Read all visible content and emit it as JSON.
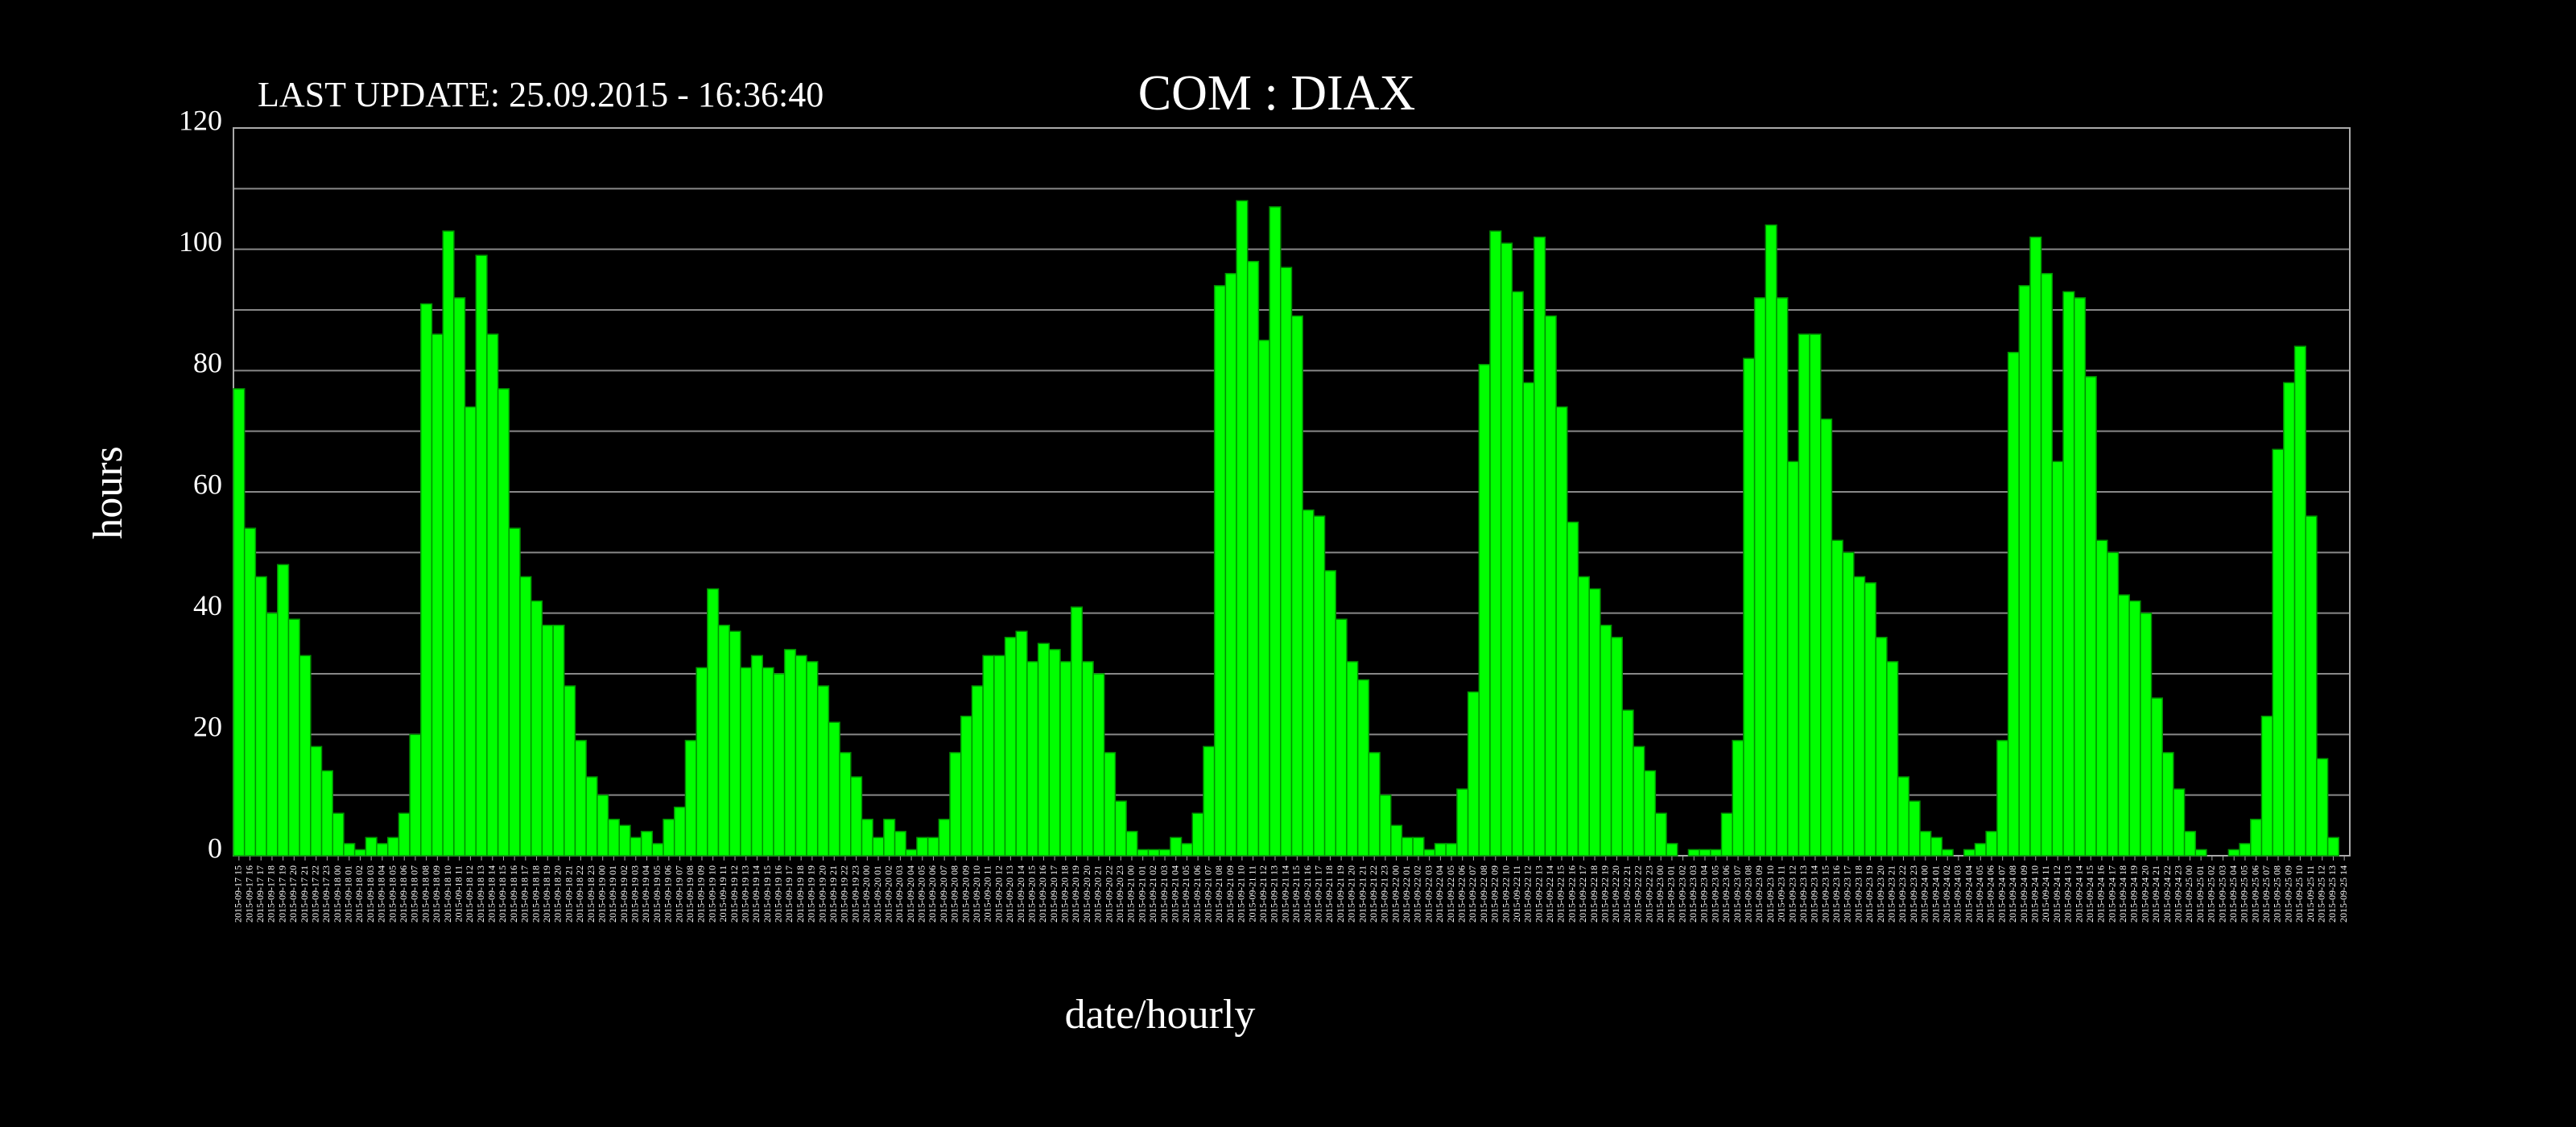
{
  "chart_data": {
    "type": "bar",
    "title": "COM : DIAX",
    "subtitle": "LAST UPDATE: 25.09.2015 - 16:36:40",
    "y_label": "hours",
    "x_label": "date/hourly",
    "color": "#00ff00",
    "ylim": [
      0,
      120
    ],
    "yticks": [
      0,
      20,
      40,
      60,
      80,
      100,
      120
    ],
    "minor_yticks": [
      10,
      30,
      50,
      70,
      90,
      110
    ],
    "grid": true,
    "categories": [
      "2015-09-17 15",
      "2015-09-17 16",
      "2015-09-17 17",
      "2015-09-17 18",
      "2015-09-17 19",
      "2015-09-17 20",
      "2015-09-17 21",
      "2015-09-17 22",
      "2015-09-17 23",
      "2015-09-18 00",
      "2015-09-18 01",
      "2015-09-18 02",
      "2015-09-18 03",
      "2015-09-18 04",
      "2015-09-18 05",
      "2015-09-18 06",
      "2015-09-18 07",
      "2015-09-18 08",
      "2015-09-18 09",
      "2015-09-18 10",
      "2015-09-18 11",
      "2015-09-18 12",
      "2015-09-18 13",
      "2015-09-18 14",
      "2015-09-18 15",
      "2015-09-18 16",
      "2015-09-18 17",
      "2015-09-18 18",
      "2015-09-18 19",
      "2015-09-18 20",
      "2015-09-18 21",
      "2015-09-18 22",
      "2015-09-18 23",
      "2015-09-19 00",
      "2015-09-19 01",
      "2015-09-19 02",
      "2015-09-19 03",
      "2015-09-19 04",
      "2015-09-19 05",
      "2015-09-19 06",
      "2015-09-19 07",
      "2015-09-19 08",
      "2015-09-19 09",
      "2015-09-19 10",
      "2015-09-19 11",
      "2015-09-19 12",
      "2015-09-19 13",
      "2015-09-19 14",
      "2015-09-19 15",
      "2015-09-19 16",
      "2015-09-19 17",
      "2015-09-19 18",
      "2015-09-19 19",
      "2015-09-19 20",
      "2015-09-19 21",
      "2015-09-19 22",
      "2015-09-19 23",
      "2015-09-20 00",
      "2015-09-20 01",
      "2015-09-20 02",
      "2015-09-20 03",
      "2015-09-20 04",
      "2015-09-20 05",
      "2015-09-20 06",
      "2015-09-20 07",
      "2015-09-20 08",
      "2015-09-20 09",
      "2015-09-20 10",
      "2015-09-20 11",
      "2015-09-20 12",
      "2015-09-20 13",
      "2015-09-20 14",
      "2015-09-20 15",
      "2015-09-20 16",
      "2015-09-20 17",
      "2015-09-20 18",
      "2015-09-20 19",
      "2015-09-20 20",
      "2015-09-20 21",
      "2015-09-20 22",
      "2015-09-20 23",
      "2015-09-21 00",
      "2015-09-21 01",
      "2015-09-21 02",
      "2015-09-21 03",
      "2015-09-21 04",
      "2015-09-21 05",
      "2015-09-21 06",
      "2015-09-21 07",
      "2015-09-21 08",
      "2015-09-21 09",
      "2015-09-21 10",
      "2015-09-21 11",
      "2015-09-21 12",
      "2015-09-21 13",
      "2015-09-21 14",
      "2015-09-21 15",
      "2015-09-21 16",
      "2015-09-21 17",
      "2015-09-21 18",
      "2015-09-21 19",
      "2015-09-21 20",
      "2015-09-21 21",
      "2015-09-21 22",
      "2015-09-21 23",
      "2015-09-22 00",
      "2015-09-22 01",
      "2015-09-22 02",
      "2015-09-22 03",
      "2015-09-22 04",
      "2015-09-22 05",
      "2015-09-22 06",
      "2015-09-22 07",
      "2015-09-22 08",
      "2015-09-22 09",
      "2015-09-22 10",
      "2015-09-22 11",
      "2015-09-22 12",
      "2015-09-22 13",
      "2015-09-22 14",
      "2015-09-22 15",
      "2015-09-22 16",
      "2015-09-22 17",
      "2015-09-22 18",
      "2015-09-22 19",
      "2015-09-22 20",
      "2015-09-22 21",
      "2015-09-22 22",
      "2015-09-22 23",
      "2015-09-23 00",
      "2015-09-23 01",
      "2015-09-23 02",
      "2015-09-23 03",
      "2015-09-23 04",
      "2015-09-23 05",
      "2015-09-23 06",
      "2015-09-23 07",
      "2015-09-23 08",
      "2015-09-23 09",
      "2015-09-23 10",
      "2015-09-23 11",
      "2015-09-23 12",
      "2015-09-23 13",
      "2015-09-23 14",
      "2015-09-23 15",
      "2015-09-23 16",
      "2015-09-23 17",
      "2015-09-23 18",
      "2015-09-23 19",
      "2015-09-23 20",
      "2015-09-23 21",
      "2015-09-23 22",
      "2015-09-23 23",
      "2015-09-24 00",
      "2015-09-24 01",
      "2015-09-24 02",
      "2015-09-24 03",
      "2015-09-24 04",
      "2015-09-24 05",
      "2015-09-24 06",
      "2015-09-24 07",
      "2015-09-24 08",
      "2015-09-24 09",
      "2015-09-24 10",
      "2015-09-24 11",
      "2015-09-24 12",
      "2015-09-24 13",
      "2015-09-24 14",
      "2015-09-24 15",
      "2015-09-24 16",
      "2015-09-24 17",
      "2015-09-24 18",
      "2015-09-24 19",
      "2015-09-24 20",
      "2015-09-24 21",
      "2015-09-24 22",
      "2015-09-24 23",
      "2015-09-25 00",
      "2015-09-25 01",
      "2015-09-25 02",
      "2015-09-25 03",
      "2015-09-25 04",
      "2015-09-25 05",
      "2015-09-25 06",
      "2015-09-25 07",
      "2015-09-25 08",
      "2015-09-25 09",
      "2015-09-25 10",
      "2015-09-25 11",
      "2015-09-25 12",
      "2015-09-25 13",
      "2015-09-25 14"
    ],
    "values": [
      77,
      54,
      46,
      40,
      48,
      39,
      33,
      18,
      14,
      7,
      2,
      1,
      3,
      2,
      3,
      7,
      20,
      91,
      86,
      103,
      92,
      74,
      99,
      86,
      77,
      54,
      46,
      42,
      38,
      38,
      28,
      19,
      13,
      10,
      6,
      5,
      3,
      4,
      2,
      6,
      8,
      19,
      31,
      44,
      38,
      37,
      31,
      33,
      31,
      30,
      34,
      33,
      32,
      28,
      22,
      17,
      13,
      6,
      3,
      6,
      4,
      1,
      3,
      3,
      6,
      17,
      23,
      28,
      33,
      33,
      36,
      37,
      32,
      35,
      34,
      32,
      41,
      32,
      30,
      17,
      9,
      4,
      1,
      1,
      1,
      3,
      2,
      7,
      18,
      94,
      96,
      108,
      98,
      85,
      107,
      97,
      89,
      57,
      56,
      47,
      39,
      32,
      29,
      17,
      10,
      5,
      3,
      3,
      1,
      2,
      2,
      11,
      27,
      81,
      103,
      101,
      93,
      78,
      102,
      89,
      74,
      55,
      46,
      44,
      38,
      36,
      24,
      18,
      14,
      7,
      2,
      0,
      1,
      1,
      1,
      7,
      19,
      82,
      92,
      104,
      92,
      65,
      86,
      86,
      72,
      52,
      50,
      46,
      45,
      36,
      32,
      13,
      9,
      4,
      3,
      1,
      0,
      1,
      2,
      4,
      19,
      83,
      94,
      102,
      96,
      65,
      93,
      92,
      79,
      52,
      50,
      43,
      42,
      40,
      26,
      17,
      11,
      4,
      1,
      0,
      0,
      1,
      2,
      6,
      23,
      67,
      78,
      84,
      56,
      16,
      3,
      0
    ]
  }
}
